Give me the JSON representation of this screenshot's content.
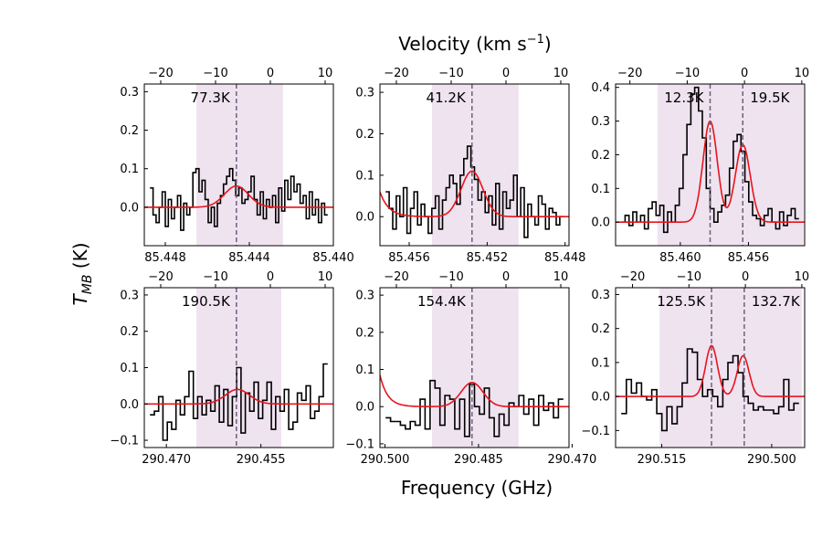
{
  "figure": {
    "top_label": "Velocity (km s",
    "top_label_sup": "−1",
    "top_label_end": ")",
    "bottom_label": "Frequency (GHz)",
    "y_label_main": "T",
    "y_label_sub": "MB",
    "y_label_end": " (K)"
  },
  "colors": {
    "shade": "#efe3f0",
    "fit": "#e8141c",
    "spectrum": "#000000",
    "dash": "#6e5f78"
  },
  "chart_data": [
    {
      "type": "line",
      "id": "p1",
      "xlim": [
        85.449,
        85.44
      ],
      "ylim": [
        -0.1,
        0.32
      ],
      "xticks": [
        85.448,
        85.444,
        85.44
      ],
      "xtick_labels": [
        "85.448",
        "85.444",
        "85.440"
      ],
      "yticks": [
        0.0,
        0.1,
        0.2,
        0.3
      ],
      "ytick_labels": [
        "0.0",
        "0.1",
        "0.2",
        "0.3"
      ],
      "vticks": [
        -20,
        -10,
        0,
        10
      ],
      "vtick_labels": [
        "−20",
        "−10",
        "0",
        "10"
      ],
      "vlim": [
        -23,
        11.5
      ],
      "shade": [
        -13.5,
        2.3
      ],
      "lines": [
        {
          "v": -6.2,
          "label": "77.3K",
          "anchor": "end"
        }
      ],
      "fit": [
        {
          "amp": 0.055,
          "v": -6.2,
          "sigma": 2.2
        }
      ],
      "baseline": 0.0,
      "spectrum": [
        0.05,
        -0.02,
        -0.04,
        0.0,
        0.04,
        -0.05,
        0.02,
        -0.03,
        0.0,
        0.03,
        -0.06,
        0.01,
        -0.02,
        0.0,
        0.09,
        0.1,
        0.04,
        0.07,
        0.02,
        -0.04,
        0.0,
        -0.05,
        0.01,
        0.03,
        0.06,
        0.08,
        0.1,
        0.07,
        0.03,
        0.05,
        0.01,
        0.02,
        0.04,
        0.08,
        0.02,
        -0.02,
        0.04,
        -0.03,
        0.02,
        0.0,
        0.03,
        -0.04,
        0.05,
        -0.01,
        0.07,
        0.02,
        0.08,
        0.04,
        0.06,
        0.01,
        0.03,
        -0.03,
        0.04,
        -0.02,
        0.02,
        -0.04,
        0.01,
        -0.02
      ]
    },
    {
      "type": "line",
      "id": "p2",
      "xlim": [
        85.4575,
        85.4478
      ],
      "ylim": [
        -0.07,
        0.32
      ],
      "xticks": [
        85.456,
        85.452,
        85.448
      ],
      "xtick_labels": [
        "85.456",
        "85.452",
        "85.448"
      ],
      "yticks": [
        0.0,
        0.1,
        0.2,
        0.3
      ],
      "ytick_labels": [
        "0.0",
        "0.1",
        "0.2",
        "0.3"
      ],
      "vticks": [
        -20,
        -10,
        0,
        10
      ],
      "vtick_labels": [
        "−20",
        "−10",
        "0",
        "10"
      ],
      "vlim": [
        -23,
        11.5
      ],
      "shade": [
        -13.5,
        2.3
      ],
      "lines": [
        {
          "v": -6.2,
          "label": "41.2K",
          "anchor": "end"
        }
      ],
      "fit": [
        {
          "amp": 0.11,
          "v": -6.2,
          "sigma": 2.0
        }
      ],
      "edge_rise": {
        "amp": 0.06,
        "scale": 1.6
      },
      "baseline": 0.0,
      "spectrum": [
        0.06,
        0.02,
        -0.03,
        0.05,
        0.0,
        0.07,
        -0.04,
        0.02,
        0.06,
        -0.02,
        0.03,
        0.0,
        -0.04,
        0.02,
        0.05,
        -0.03,
        0.04,
        0.07,
        0.1,
        0.08,
        0.03,
        0.1,
        0.14,
        0.17,
        0.12,
        0.09,
        0.04,
        0.06,
        0.01,
        0.05,
        -0.02,
        0.08,
        -0.03,
        0.06,
        0.02,
        0.04,
        0.1,
        0.0,
        0.07,
        -0.05,
        0.03,
        0.0,
        -0.02,
        0.05,
        0.03,
        -0.03,
        0.02,
        0.01,
        -0.02,
        0.0
      ]
    },
    {
      "type": "line",
      "id": "p3",
      "xlim": [
        85.4638,
        85.4527
      ],
      "ylim": [
        -0.07,
        0.41
      ],
      "xticks": [
        85.46,
        85.456
      ],
      "xtick_labels": [
        "85.460",
        "85.456"
      ],
      "yticks": [
        0.0,
        0.1,
        0.2,
        0.3,
        0.4
      ],
      "ytick_labels": [
        "0.0",
        "0.1",
        "0.2",
        "0.3",
        "0.4"
      ],
      "vticks": [
        -20,
        -10,
        0,
        10
      ],
      "vtick_labels": [
        "−20",
        "−10",
        "0",
        "10"
      ],
      "vlim": [
        -22.5,
        10.5
      ],
      "shade": [
        -15.2,
        10.3
      ],
      "lines": [
        {
          "v": -6.0,
          "label": "12.3K",
          "anchor": "end"
        },
        {
          "v": -0.3,
          "label": "19.5K",
          "anchor": "start"
        }
      ],
      "fit": [
        {
          "amp": 0.3,
          "v": -6.0,
          "sigma": 1.25
        },
        {
          "amp": 0.23,
          "v": -0.3,
          "sigma": 1.3
        }
      ],
      "baseline": 0.0,
      "spectrum": [
        0.0,
        0.02,
        -0.01,
        0.03,
        0.0,
        0.02,
        -0.02,
        0.04,
        0.06,
        0.02,
        0.05,
        -0.03,
        0.03,
        0.0,
        0.05,
        0.1,
        0.2,
        0.29,
        0.38,
        0.4,
        0.33,
        0.25,
        0.1,
        0.04,
        0.0,
        0.03,
        0.05,
        0.08,
        0.16,
        0.24,
        0.26,
        0.21,
        0.12,
        0.06,
        0.02,
        0.01,
        -0.01,
        0.02,
        0.04,
        0.0,
        -0.02,
        0.03,
        -0.01,
        0.02,
        0.04,
        0.01
      ]
    },
    {
      "type": "line",
      "id": "p4",
      "xlim": [
        290.4735,
        290.4435
      ],
      "ylim": [
        -0.12,
        0.32
      ],
      "xticks": [
        290.47,
        290.455
      ],
      "xtick_labels": [
        "290.470",
        "290.455"
      ],
      "yticks": [
        -0.1,
        0.0,
        0.1,
        0.2,
        0.3
      ],
      "ytick_labels": [
        "−0.1",
        "0.0",
        "0.1",
        "0.2",
        "0.3"
      ],
      "vticks": [
        -20,
        -10,
        0,
        10
      ],
      "vtick_labels": [
        "−20",
        "−10",
        "0",
        "10"
      ],
      "vlim": [
        -23,
        11.5
      ],
      "shade": [
        -13.5,
        2.0
      ],
      "lines": [
        {
          "v": -6.2,
          "label": "190.5K",
          "anchor": "end"
        }
      ],
      "fit": [
        {
          "amp": 0.04,
          "v": -6.0,
          "sigma": 2.2
        }
      ],
      "baseline": 0.0,
      "spectrum": [
        -0.03,
        -0.02,
        0.02,
        -0.1,
        -0.05,
        -0.07,
        0.01,
        -0.03,
        0.02,
        0.09,
        -0.04,
        0.02,
        -0.03,
        0.01,
        -0.02,
        0.05,
        -0.05,
        0.04,
        -0.06,
        0.02,
        0.1,
        -0.08,
        0.03,
        -0.02,
        0.06,
        -0.04,
        0.01,
        0.06,
        -0.07,
        0.02,
        -0.02,
        0.04,
        -0.07,
        -0.05,
        0.03,
        0.01,
        0.05,
        -0.04,
        -0.02,
        0.02,
        0.11
      ]
    },
    {
      "type": "line",
      "id": "p5",
      "xlim": [
        290.5008,
        290.4705
      ],
      "ylim": [
        -0.11,
        0.32
      ],
      "xticks": [
        290.5,
        290.485,
        290.47
      ],
      "xtick_labels": [
        "290.500",
        "290.485",
        "290.470"
      ],
      "yticks": [
        -0.1,
        0.0,
        0.1,
        0.2,
        0.3
      ],
      "ytick_labels": [
        "−0.1",
        "0.0",
        "0.1",
        "0.2",
        "0.3"
      ],
      "vticks": [
        -20,
        -10,
        0,
        10
      ],
      "vtick_labels": [
        "−20",
        "−10",
        "0",
        "10"
      ],
      "vlim": [
        -23,
        11.5
      ],
      "shade": [
        -13.5,
        2.3
      ],
      "lines": [
        {
          "v": -6.2,
          "label": "154.4K",
          "anchor": "end"
        }
      ],
      "fit": [
        {
          "amp": 0.065,
          "v": -6.2,
          "sigma": 2.0
        }
      ],
      "edge_rise": {
        "amp": 0.085,
        "scale": 1.4
      },
      "baseline": 0.0,
      "spectrum": [
        -0.03,
        -0.04,
        -0.04,
        -0.05,
        -0.06,
        -0.04,
        -0.05,
        0.02,
        -0.06,
        0.07,
        0.05,
        -0.05,
        0.03,
        0.02,
        -0.06,
        0.02,
        -0.08,
        0.06,
        0.0,
        -0.02,
        0.05,
        -0.03,
        -0.08,
        -0.02,
        -0.05,
        0.01,
        0.0,
        0.03,
        -0.02,
        0.02,
        -0.05,
        0.03,
        -0.01,
        0.01,
        -0.03,
        0.02
      ]
    },
    {
      "type": "line",
      "id": "p6",
      "xlim": [
        290.5213,
        290.4955
      ],
      "ylim": [
        -0.15,
        0.32
      ],
      "xticks": [
        290.515,
        290.5
      ],
      "xtick_labels": [
        "290.515",
        "290.500"
      ],
      "yticks": [
        -0.1,
        0.0,
        0.1,
        0.2,
        0.3
      ],
      "ytick_labels": [
        "−0.1",
        "0.0",
        "0.1",
        "0.2",
        "0.3"
      ],
      "vticks": [
        -20,
        -10,
        0,
        10
      ],
      "vtick_labels": [
        "−20",
        "−10",
        "0",
        "10"
      ],
      "vlim": [
        -23,
        10.5
      ],
      "shade": [
        -15.2,
        10.0
      ],
      "lines": [
        {
          "v": -6.0,
          "label": "125.5K",
          "anchor": "end"
        },
        {
          "v": -0.2,
          "label": "132.7K",
          "anchor": "start"
        }
      ],
      "fit": [
        {
          "amp": 0.15,
          "v": -6.0,
          "sigma": 1.05
        },
        {
          "amp": 0.12,
          "v": -0.4,
          "sigma": 1.05
        }
      ],
      "baseline": 0.0,
      "spectrum": [
        -0.05,
        0.05,
        0.01,
        0.04,
        0.0,
        -0.01,
        0.02,
        -0.05,
        -0.1,
        -0.03,
        -0.08,
        -0.03,
        0.04,
        0.14,
        0.13,
        0.05,
        0.0,
        0.02,
        0.0,
        -0.03,
        0.05,
        0.1,
        0.12,
        0.07,
        0.0,
        -0.02,
        -0.04,
        -0.03,
        -0.04,
        -0.04,
        -0.05,
        -0.03,
        0.05,
        -0.04,
        -0.02
      ]
    }
  ]
}
